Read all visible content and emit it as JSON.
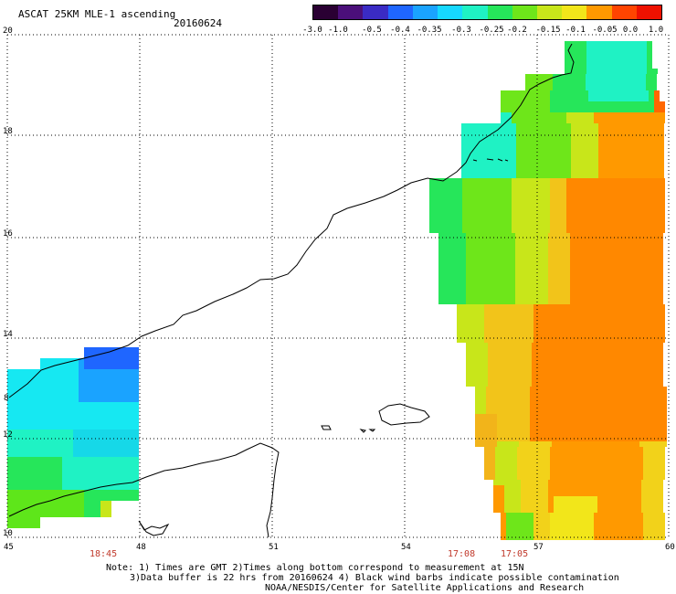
{
  "header": {
    "title": "ASCAT 25KM MLE-1 ascending",
    "date": "20160624"
  },
  "colorbar": {
    "labels": [
      "-3.0",
      "-1.0",
      "-0.5",
      "-0.4",
      "-0.35",
      "-0.3",
      "-0.25",
      "-0.2",
      "-0.15",
      "-0.1",
      "-0.05",
      "0.0",
      "1.0"
    ],
    "colors": [
      "#2a0033",
      "#4b0f7a",
      "#3a2bc4",
      "#1f66ff",
      "#1aa3ff",
      "#16d8ff",
      "#1ff2c4",
      "#26e65a",
      "#6ee61a",
      "#c8e61a",
      "#f2e61a",
      "#ff9900",
      "#ff4400",
      "#ee1100"
    ]
  },
  "map": {
    "lat_labels": [
      "20",
      "18",
      "16",
      "14",
      "12",
      "10"
    ],
    "lon_labels": [
      "45",
      "48",
      "51",
      "54",
      "57",
      "60"
    ],
    "extra_label": "8",
    "times": [
      "18:45",
      "17:08",
      "17:05"
    ]
  },
  "footer": {
    "note_line1": "Note: 1) Times are GMT 2)Times along bottom correspond to measurement at 15N",
    "note_line2": "3)Data buffer is 22 hrs from 20160624 4) Black wind barbs indicate possible contamination",
    "note_line3": "NOAA/NESDIS/Center for Satellite Applications and Research"
  }
}
